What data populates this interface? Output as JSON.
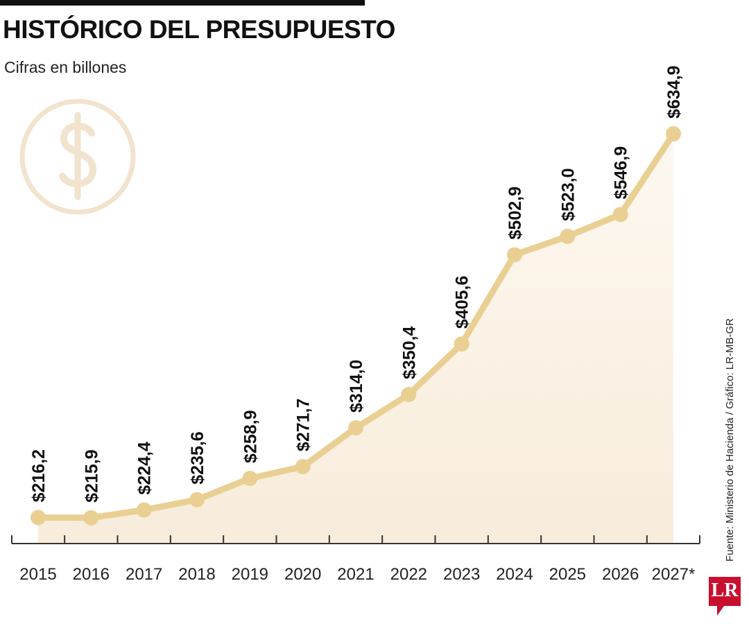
{
  "header": {
    "title": "HISTÓRICO DEL PRESUPUESTO",
    "subtitle": "Cifras en billones"
  },
  "footer": {
    "source": "Fuente: Ministerio de Hacienda / Gráfico: LR-MB-GR",
    "logo": "LR"
  },
  "decoration": {
    "icon": "dollar-circle-icon",
    "icon_color": "#f1e3cd"
  },
  "colors": {
    "line": "#e9cf92",
    "area": "#fbf3e6",
    "axis": "#333333"
  },
  "chart_data": {
    "type": "line",
    "title": "HISTÓRICO DEL PRESUPUESTO",
    "subtitle": "Cifras en billones",
    "categories": [
      "2015",
      "2016",
      "2017",
      "2018",
      "2019",
      "2020",
      "2021",
      "2022",
      "2023",
      "2024",
      "2025",
      "2026",
      "2027*"
    ],
    "values": [
      216.2,
      215.9,
      224.4,
      235.6,
      258.9,
      271.7,
      314.0,
      350.4,
      405.6,
      502.9,
      523.0,
      546.9,
      634.9
    ],
    "data_labels": [
      "$216,2",
      "$215,9",
      "$224,4",
      "$235,6",
      "$258,9",
      "$271,7",
      "$314,0",
      "$350,4",
      "$405,6",
      "$502,9",
      "$523,0",
      "$546,9",
      "$634,9"
    ],
    "xlabel": "",
    "ylabel": "",
    "grid": false,
    "legend": "none",
    "area_fill": true
  }
}
